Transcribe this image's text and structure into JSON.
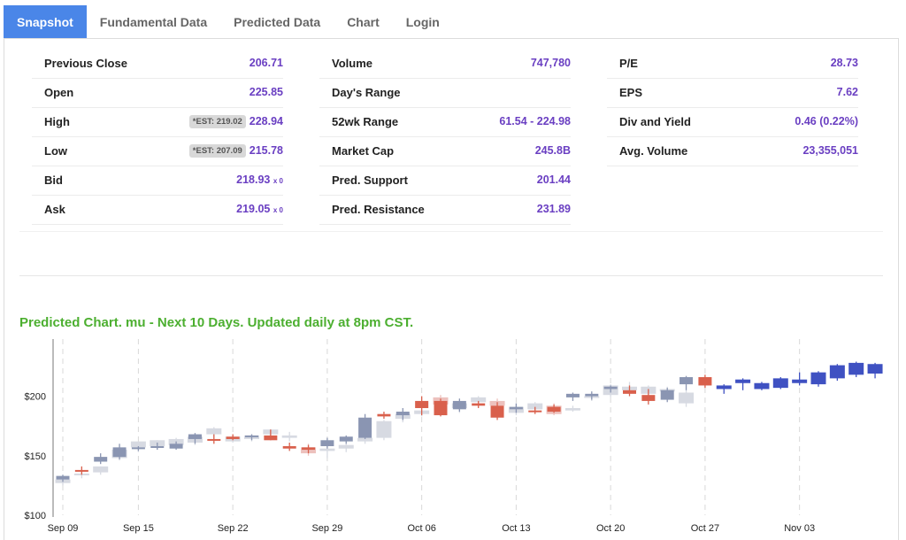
{
  "tabs": [
    {
      "label": "Snapshot",
      "active": true
    },
    {
      "label": "Fundamental Data"
    },
    {
      "label": "Predicted Data"
    },
    {
      "label": "Chart"
    },
    {
      "label": "Login"
    }
  ],
  "stats": {
    "col1": [
      {
        "label": "Previous Close",
        "value": "206.71"
      },
      {
        "label": "Open",
        "value": "225.85"
      },
      {
        "label": "High",
        "est": "*EST: 219.02",
        "value": "228.94"
      },
      {
        "label": "Low",
        "est": "*EST: 207.09",
        "value": "215.78"
      },
      {
        "label": "Bid",
        "value": "218.93",
        "suffix": "x 0"
      },
      {
        "label": "Ask",
        "value": "219.05",
        "suffix": "x 0"
      }
    ],
    "col2": [
      {
        "label": "Volume",
        "value": "747,780"
      },
      {
        "label": "Day's Range",
        "value": ""
      },
      {
        "label": "52wk Range",
        "value": "61.54 - 224.98"
      },
      {
        "label": "Market Cap",
        "value": "245.8B"
      },
      {
        "label": "Pred. Support",
        "value": "201.44"
      },
      {
        "label": "Pred. Resistance",
        "value": "231.89"
      }
    ],
    "col3": [
      {
        "label": "P/E",
        "value": "28.73"
      },
      {
        "label": "EPS",
        "value": "7.62"
      },
      {
        "label": "Div and Yield",
        "value": "0.46 (0.22%)"
      },
      {
        "label": "Avg. Volume",
        "value": "23,355,051"
      }
    ]
  },
  "chart_title": "Predicted Chart. mu - Next 10 Days. Updated daily at 8pm CST.",
  "colors": {
    "accent_tab": "#4a86e8",
    "value_text": "#6a3fc2",
    "chart_title": "#4caf30",
    "hist_up": "#8a95b2",
    "hist_down": "#d9604c",
    "shadow_up": "#d7dae2",
    "shadow_down": "#edc1bd",
    "pred": "#3f51c2"
  },
  "chart_data": {
    "type": "candlestick",
    "title": "Predicted Chart. mu - Next 10 Days. Updated daily at 8pm CST.",
    "ylim": [
      100,
      248
    ],
    "y_ticks": [
      "$100",
      "$150",
      "$200"
    ],
    "x_ticks": [
      "Sep 09",
      "Sep 15",
      "Sep 22",
      "Sep 29",
      "Oct 06",
      "Oct 13",
      "Oct 20",
      "Oct 27",
      "Nov 03"
    ],
    "grid": "dashed vertical lines at each date tick",
    "historical": [
      {
        "date": "Sep 09",
        "o": 130,
        "h": 134,
        "l": 128,
        "c": 133
      },
      {
        "date": "Sep 10",
        "o": 138,
        "h": 141,
        "l": 134,
        "c": 137
      },
      {
        "date": "Sep 11",
        "o": 145,
        "h": 152,
        "l": 143,
        "c": 149
      },
      {
        "date": "Sep 12",
        "o": 149,
        "h": 160,
        "l": 147,
        "c": 157
      },
      {
        "date": "Sep 15",
        "o": 156,
        "h": 158,
        "l": 154,
        "c": 157
      },
      {
        "date": "Sep 16",
        "o": 157,
        "h": 161,
        "l": 155,
        "c": 158
      },
      {
        "date": "Sep 17",
        "o": 156,
        "h": 162,
        "l": 155,
        "c": 160
      },
      {
        "date": "Sep 18",
        "o": 164,
        "h": 169,
        "l": 160,
        "c": 168
      },
      {
        "date": "Sep 19",
        "o": 164,
        "h": 168,
        "l": 160,
        "c": 163
      },
      {
        "date": "Sep 22",
        "o": 166,
        "h": 168,
        "l": 163,
        "c": 164
      },
      {
        "date": "Sep 23",
        "o": 166,
        "h": 168,
        "l": 163,
        "c": 167
      },
      {
        "date": "Sep 24",
        "o": 167,
        "h": 172,
        "l": 163,
        "c": 163
      },
      {
        "date": "Sep 25",
        "o": 158,
        "h": 161,
        "l": 154,
        "c": 156
      },
      {
        "date": "Sep 26",
        "o": 157,
        "h": 159,
        "l": 152,
        "c": 155
      },
      {
        "date": "Sep 29",
        "o": 158,
        "h": 165,
        "l": 156,
        "c": 163
      },
      {
        "date": "Sep 30",
        "o": 162,
        "h": 167,
        "l": 160,
        "c": 166
      },
      {
        "date": "Oct 01",
        "o": 165,
        "h": 185,
        "l": 164,
        "c": 182
      },
      {
        "date": "Oct 02",
        "o": 185,
        "h": 187,
        "l": 181,
        "c": 183
      },
      {
        "date": "Oct 03",
        "o": 184,
        "h": 190,
        "l": 180,
        "c": 187
      },
      {
        "date": "Oct 06",
        "o": 196,
        "h": 200,
        "l": 184,
        "c": 190
      },
      {
        "date": "Oct 07",
        "o": 196,
        "h": 198,
        "l": 183,
        "c": 184
      },
      {
        "date": "Oct 08",
        "o": 189,
        "h": 198,
        "l": 187,
        "c": 196
      },
      {
        "date": "Oct 09",
        "o": 194,
        "h": 196,
        "l": 190,
        "c": 192
      },
      {
        "date": "Oct 10",
        "o": 192,
        "h": 195,
        "l": 180,
        "c": 182
      },
      {
        "date": "Oct 13",
        "o": 189,
        "h": 194,
        "l": 186,
        "c": 191
      },
      {
        "date": "Oct 14",
        "o": 188,
        "h": 191,
        "l": 185,
        "c": 187
      },
      {
        "date": "Oct 15",
        "o": 191,
        "h": 193,
        "l": 186,
        "c": 187
      },
      {
        "date": "Oct 16",
        "o": 199,
        "h": 203,
        "l": 196,
        "c": 202
      },
      {
        "date": "Oct 17",
        "o": 200,
        "h": 204,
        "l": 197,
        "c": 202
      },
      {
        "date": "Oct 20",
        "o": 206,
        "h": 209,
        "l": 203,
        "c": 208
      },
      {
        "date": "Oct 21",
        "o": 205,
        "h": 209,
        "l": 200,
        "c": 202
      },
      {
        "date": "Oct 22",
        "o": 201,
        "h": 206,
        "l": 193,
        "c": 196
      },
      {
        "date": "Oct 23",
        "o": 197,
        "h": 207,
        "l": 195,
        "c": 205
      },
      {
        "date": "Oct 24",
        "o": 210,
        "h": 217,
        "l": 205,
        "c": 216
      },
      {
        "date": "Oct 27",
        "o": 216,
        "h": 218,
        "l": 207,
        "c": 209
      }
    ],
    "historical_shadow": [
      {
        "date": "Sep 09",
        "o": 127,
        "h": 131,
        "l": 125,
        "c": 130
      },
      {
        "date": "Sep 10",
        "o": 134,
        "h": 137,
        "l": 131,
        "c": 135
      },
      {
        "date": "Sep 11",
        "o": 136,
        "h": 141,
        "l": 134,
        "c": 141
      },
      {
        "date": "Sep 12",
        "o": 148,
        "h": 154,
        "l": 146,
        "c": 155
      },
      {
        "date": "Sep 15",
        "o": 157,
        "h": 160,
        "l": 153,
        "c": 162
      },
      {
        "date": "Sep 16",
        "o": 158,
        "h": 163,
        "l": 155,
        "c": 163
      },
      {
        "date": "Sep 17",
        "o": 159,
        "h": 165,
        "l": 157,
        "c": 164
      },
      {
        "date": "Sep 18",
        "o": 161,
        "h": 169,
        "l": 159,
        "c": 166
      },
      {
        "date": "Sep 19",
        "o": 168,
        "h": 174,
        "l": 165,
        "c": 173
      },
      {
        "date": "Sep 22",
        "o": 162,
        "h": 168,
        "l": 161,
        "c": 166
      },
      {
        "date": "Sep 23",
        "o": 164,
        "h": 168,
        "l": 162,
        "c": 167
      },
      {
        "date": "Sep 24",
        "o": 168,
        "h": 172,
        "l": 166,
        "c": 172
      },
      {
        "date": "Sep 25",
        "o": 165,
        "h": 170,
        "l": 162,
        "c": 167
      },
      {
        "date": "Sep 26",
        "o": 157,
        "h": 160,
        "l": 150,
        "c": 152
      },
      {
        "date": "Sep 29",
        "o": 154,
        "h": 158,
        "l": 148,
        "c": 156
      },
      {
        "date": "Sep 30",
        "o": 156,
        "h": 160,
        "l": 153,
        "c": 159
      },
      {
        "date": "Oct 01",
        "o": 162,
        "h": 167,
        "l": 160,
        "c": 165
      },
      {
        "date": "Oct 02",
        "o": 165,
        "h": 180,
        "l": 163,
        "c": 179
      },
      {
        "date": "Oct 03",
        "o": 181,
        "h": 186,
        "l": 178,
        "c": 185
      },
      {
        "date": "Oct 06",
        "o": 185,
        "h": 190,
        "l": 183,
        "c": 188
      },
      {
        "date": "Oct 07",
        "o": 199,
        "h": 201,
        "l": 190,
        "c": 193
      },
      {
        "date": "Oct 08",
        "o": 190,
        "h": 196,
        "l": 186,
        "c": 194
      },
      {
        "date": "Oct 09",
        "o": 195,
        "h": 200,
        "l": 192,
        "c": 199
      },
      {
        "date": "Oct 10",
        "o": 196,
        "h": 198,
        "l": 190,
        "c": 192
      },
      {
        "date": "Oct 13",
        "o": 186,
        "h": 192,
        "l": 184,
        "c": 191
      },
      {
        "date": "Oct 14",
        "o": 189,
        "h": 195,
        "l": 187,
        "c": 194
      },
      {
        "date": "Oct 15",
        "o": 192,
        "h": 194,
        "l": 184,
        "c": 185
      },
      {
        "date": "Oct 16",
        "o": 188,
        "h": 192,
        "l": 187,
        "c": 190
      },
      {
        "date": "Oct 17",
        "o": 199,
        "h": 201,
        "l": 196,
        "c": 200
      },
      {
        "date": "Oct 20",
        "o": 201,
        "h": 210,
        "l": 199,
        "c": 209
      },
      {
        "date": "Oct 21",
        "o": 205,
        "h": 212,
        "l": 202,
        "c": 208
      },
      {
        "date": "Oct 22",
        "o": 202,
        "h": 209,
        "l": 199,
        "c": 208
      },
      {
        "date": "Oct 23",
        "o": 204,
        "h": 208,
        "l": 201,
        "c": 206
      },
      {
        "date": "Oct 24",
        "o": 194,
        "h": 205,
        "l": 191,
        "c": 203
      }
    ],
    "predicted": [
      {
        "date": "Oct 28",
        "o": 206,
        "h": 210,
        "l": 202,
        "c": 209
      },
      {
        "date": "Oct 29",
        "o": 211,
        "h": 215,
        "l": 205,
        "c": 214
      },
      {
        "date": "Oct 30",
        "o": 206,
        "h": 212,
        "l": 205,
        "c": 211
      },
      {
        "date": "Oct 31",
        "o": 207,
        "h": 216,
        "l": 206,
        "c": 215
      },
      {
        "date": "Nov 03",
        "o": 211,
        "h": 220,
        "l": 209,
        "c": 214
      },
      {
        "date": "Nov 04",
        "o": 210,
        "h": 221,
        "l": 208,
        "c": 220
      },
      {
        "date": "Nov 05",
        "o": 215,
        "h": 227,
        "l": 213,
        "c": 226
      },
      {
        "date": "Nov 06",
        "o": 218,
        "h": 229,
        "l": 216,
        "c": 228
      },
      {
        "date": "Nov 07",
        "o": 219,
        "h": 228,
        "l": 215,
        "c": 227
      }
    ]
  }
}
